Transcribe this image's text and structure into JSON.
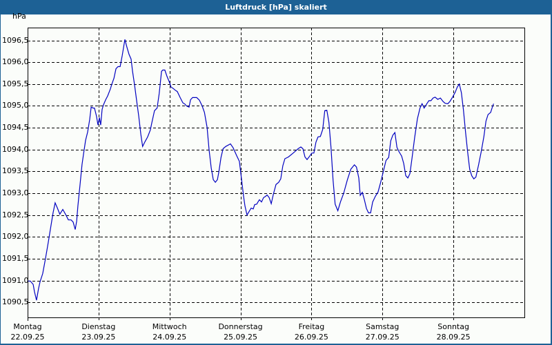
{
  "window": {
    "title": "Luftdruck [hPa] skaliert"
  },
  "colors": {
    "titlebar": "#1d6195",
    "background": "#fbfdfa",
    "line": "#0000c0",
    "grid": "#000000"
  },
  "chart_data": {
    "type": "line",
    "title": "Luftdruck [hPa] skaliert",
    "ylabel": "hPa",
    "xlabel": "",
    "ylim": [
      1090.15,
      1096.8
    ],
    "xlim_hours": [
      0,
      168
    ],
    "grid": true,
    "legend": null,
    "yticks": [
      "1090,5",
      "1091,0",
      "1091,5",
      "1092,0",
      "1092,5",
      "1093,0",
      "1093,5",
      "1094,0",
      "1094,5",
      "1095,0",
      "1095,5",
      "1096,0",
      "1096,5"
    ],
    "ytick_values": [
      1090.5,
      1091.0,
      1091.5,
      1092.0,
      1092.5,
      1093.0,
      1093.5,
      1094.0,
      1094.5,
      1095.0,
      1095.5,
      1096.0,
      1096.5
    ],
    "xticks": [
      {
        "day": "Montag",
        "date": "22.09.25"
      },
      {
        "day": "Dienstag",
        "date": "23.09.25"
      },
      {
        "day": "Mittwoch",
        "date": "24.09.25"
      },
      {
        "day": "Donnerstag",
        "date": "25.09.25"
      },
      {
        "day": "Freitag",
        "date": "26.09.25"
      },
      {
        "day": "Samstag",
        "date": "27.09.25"
      },
      {
        "day": "Sonntag",
        "date": "28.09.25"
      }
    ],
    "series": [
      {
        "name": "Luftdruck",
        "unit": "hPa",
        "points_hours_value": [
          [
            0,
            1090.99
          ],
          [
            0.9,
            1090.99
          ],
          [
            1.9,
            1090.91
          ],
          [
            2.3,
            1090.75
          ],
          [
            3.0,
            1090.55
          ],
          [
            3.7,
            1090.82
          ],
          [
            4.2,
            1090.97
          ],
          [
            5.1,
            1091.16
          ],
          [
            6.1,
            1091.52
          ],
          [
            7.0,
            1091.88
          ],
          [
            7.9,
            1092.26
          ],
          [
            8.6,
            1092.55
          ],
          [
            9.3,
            1092.78
          ],
          [
            10.0,
            1092.67
          ],
          [
            10.9,
            1092.52
          ],
          [
            11.9,
            1092.63
          ],
          [
            12.8,
            1092.52
          ],
          [
            13.8,
            1092.39
          ],
          [
            14.7,
            1092.39
          ],
          [
            15.4,
            1092.34
          ],
          [
            16.1,
            1092.17
          ],
          [
            16.6,
            1092.36
          ],
          [
            17.0,
            1092.71
          ],
          [
            17.7,
            1093.18
          ],
          [
            18.4,
            1093.66
          ],
          [
            18.9,
            1093.89
          ],
          [
            19.6,
            1094.21
          ],
          [
            20.3,
            1094.4
          ],
          [
            21.0,
            1094.69
          ],
          [
            21.5,
            1094.97
          ],
          [
            22.2,
            1094.95
          ],
          [
            22.6,
            1094.95
          ],
          [
            23.3,
            1094.76
          ],
          [
            23.8,
            1094.56
          ],
          [
            24.3,
            1094.73
          ],
          [
            24.7,
            1094.56
          ],
          [
            25.2,
            1094.92
          ],
          [
            25.7,
            1095.03
          ],
          [
            26.4,
            1095.14
          ],
          [
            27.1,
            1095.23
          ],
          [
            28.0,
            1095.39
          ],
          [
            28.5,
            1095.5
          ],
          [
            29.2,
            1095.63
          ],
          [
            29.9,
            1095.85
          ],
          [
            30.6,
            1095.9
          ],
          [
            31.3,
            1095.9
          ],
          [
            32.0,
            1096.15
          ],
          [
            32.9,
            1096.52
          ],
          [
            33.6,
            1096.34
          ],
          [
            34.3,
            1096.18
          ],
          [
            35.0,
            1096.07
          ],
          [
            35.5,
            1095.79
          ],
          [
            36.2,
            1095.47
          ],
          [
            36.9,
            1095.11
          ],
          [
            37.6,
            1094.76
          ],
          [
            38.3,
            1094.35
          ],
          [
            38.9,
            1094.07
          ],
          [
            39.7,
            1094.18
          ],
          [
            40.6,
            1094.29
          ],
          [
            41.5,
            1094.45
          ],
          [
            42.0,
            1094.61
          ],
          [
            42.9,
            1094.89
          ],
          [
            43.8,
            1094.95
          ],
          [
            44.5,
            1095.28
          ],
          [
            45.3,
            1095.79
          ],
          [
            45.7,
            1095.82
          ],
          [
            46.4,
            1095.82
          ],
          [
            47.1,
            1095.68
          ],
          [
            48.1,
            1095.52
          ],
          [
            48.5,
            1095.43
          ],
          [
            49.2,
            1095.4
          ],
          [
            49.9,
            1095.36
          ],
          [
            50.6,
            1095.33
          ],
          [
            51.6,
            1095.19
          ],
          [
            52.5,
            1095.07
          ],
          [
            53.2,
            1095.04
          ],
          [
            53.7,
            1095.0
          ],
          [
            54.6,
            1094.97
          ],
          [
            55.1,
            1095.14
          ],
          [
            55.8,
            1095.19
          ],
          [
            57.2,
            1095.19
          ],
          [
            58.1,
            1095.13
          ],
          [
            59.0,
            1095.0
          ],
          [
            59.8,
            1094.85
          ],
          [
            60.7,
            1094.51
          ],
          [
            61.4,
            1093.98
          ],
          [
            62.1,
            1093.58
          ],
          [
            62.8,
            1093.31
          ],
          [
            63.5,
            1093.25
          ],
          [
            64.2,
            1093.31
          ],
          [
            64.7,
            1093.5
          ],
          [
            65.4,
            1093.82
          ],
          [
            66.1,
            1094.02
          ],
          [
            67.0,
            1094.07
          ],
          [
            68.6,
            1094.13
          ],
          [
            69.5,
            1094.04
          ],
          [
            70.7,
            1093.86
          ],
          [
            71.6,
            1093.73
          ],
          [
            72.3,
            1093.34
          ],
          [
            73.0,
            1092.94
          ],
          [
            73.5,
            1092.71
          ],
          [
            74.2,
            1092.5
          ],
          [
            74.9,
            1092.58
          ],
          [
            75.6,
            1092.66
          ],
          [
            76.3,
            1092.64
          ],
          [
            76.8,
            1092.74
          ],
          [
            77.5,
            1092.75
          ],
          [
            77.9,
            1092.8
          ],
          [
            78.4,
            1092.85
          ],
          [
            79.1,
            1092.8
          ],
          [
            79.8,
            1092.9
          ],
          [
            80.5,
            1092.93
          ],
          [
            81.0,
            1092.96
          ],
          [
            81.7,
            1092.9
          ],
          [
            82.4,
            1092.76
          ],
          [
            83.1,
            1092.97
          ],
          [
            84.0,
            1093.2
          ],
          [
            84.9,
            1093.25
          ],
          [
            85.6,
            1093.33
          ],
          [
            86.3,
            1093.63
          ],
          [
            87.0,
            1093.79
          ],
          [
            88.2,
            1093.83
          ],
          [
            89.8,
            1093.92
          ],
          [
            91.5,
            1094.02
          ],
          [
            92.4,
            1094.06
          ],
          [
            93.1,
            1094.02
          ],
          [
            93.8,
            1093.83
          ],
          [
            94.5,
            1093.77
          ],
          [
            95.4,
            1093.85
          ],
          [
            96.1,
            1093.92
          ],
          [
            96.8,
            1093.92
          ],
          [
            97.5,
            1094.17
          ],
          [
            98.2,
            1094.29
          ],
          [
            99.0,
            1094.3
          ],
          [
            99.8,
            1094.46
          ],
          [
            100.5,
            1094.89
          ],
          [
            101.2,
            1094.9
          ],
          [
            101.9,
            1094.62
          ],
          [
            102.6,
            1094.05
          ],
          [
            103.3,
            1093.3
          ],
          [
            104.0,
            1092.75
          ],
          [
            104.9,
            1092.6
          ],
          [
            105.8,
            1092.8
          ],
          [
            106.9,
            1093.0
          ],
          [
            108.1,
            1093.3
          ],
          [
            109.3,
            1093.55
          ],
          [
            110.5,
            1093.65
          ],
          [
            111.2,
            1093.6
          ],
          [
            112.0,
            1093.35
          ],
          [
            112.5,
            1092.95
          ],
          [
            113.2,
            1093.02
          ],
          [
            113.9,
            1092.85
          ],
          [
            114.6,
            1092.65
          ],
          [
            115.3,
            1092.55
          ],
          [
            116.0,
            1092.55
          ],
          [
            116.7,
            1092.8
          ],
          [
            117.6,
            1092.93
          ],
          [
            118.5,
            1093.03
          ],
          [
            119.4,
            1093.25
          ],
          [
            120.3,
            1093.5
          ],
          [
            121.2,
            1093.75
          ],
          [
            122.1,
            1093.82
          ],
          [
            122.8,
            1094.2
          ],
          [
            123.5,
            1094.33
          ],
          [
            124.2,
            1094.39
          ],
          [
            124.9,
            1094.05
          ],
          [
            125.6,
            1093.95
          ],
          [
            126.5,
            1093.85
          ],
          [
            127.2,
            1093.68
          ],
          [
            127.9,
            1093.4
          ],
          [
            128.6,
            1093.35
          ],
          [
            129.3,
            1093.45
          ],
          [
            130.0,
            1093.8
          ],
          [
            130.9,
            1094.28
          ],
          [
            131.8,
            1094.7
          ],
          [
            132.7,
            1094.95
          ],
          [
            133.4,
            1095.05
          ],
          [
            134.1,
            1094.95
          ],
          [
            135.0,
            1095.05
          ],
          [
            135.7,
            1095.12
          ],
          [
            136.4,
            1095.12
          ],
          [
            137.1,
            1095.18
          ],
          [
            137.8,
            1095.2
          ],
          [
            138.7,
            1095.15
          ],
          [
            139.6,
            1095.18
          ],
          [
            140.5,
            1095.1
          ],
          [
            141.2,
            1095.06
          ],
          [
            142.1,
            1095.05
          ],
          [
            142.8,
            1095.1
          ],
          [
            143.7,
            1095.2
          ],
          [
            144.6,
            1095.31
          ],
          [
            145.3,
            1095.43
          ],
          [
            146.0,
            1095.5
          ],
          [
            146.7,
            1095.3
          ],
          [
            147.4,
            1094.9
          ],
          [
            148.1,
            1094.4
          ],
          [
            148.8,
            1093.95
          ],
          [
            149.5,
            1093.55
          ],
          [
            150.2,
            1093.4
          ],
          [
            150.9,
            1093.33
          ],
          [
            151.6,
            1093.37
          ],
          [
            152.5,
            1093.65
          ],
          [
            153.4,
            1093.95
          ],
          [
            154.3,
            1094.3
          ],
          [
            155.0,
            1094.65
          ],
          [
            155.7,
            1094.8
          ],
          [
            156.6,
            1094.85
          ],
          [
            157.3,
            1095.0
          ],
          [
            157.6,
            1095.05
          ]
        ]
      }
    ]
  }
}
